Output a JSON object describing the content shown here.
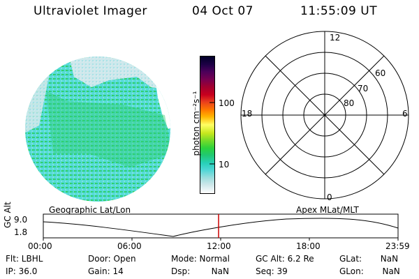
{
  "header": {
    "title": "Ultraviolet Imager",
    "date": "04 Oct 07",
    "time": "11:55:09 UT"
  },
  "colorbar": {
    "label": "photon cm⁻²s⁻¹",
    "ticks": [
      "100",
      "10"
    ],
    "colors": [
      "#ffffff",
      "#cfe7ea",
      "#9fdede",
      "#4fd6d6",
      "#28d0b8",
      "#21c870",
      "#2cd23c",
      "#7cdc28",
      "#c8e81e",
      "#ffff64",
      "#ffb400",
      "#ff7800",
      "#e83c1e",
      "#c8001e",
      "#a00030",
      "#780050",
      "#4a005a",
      "#1e0046",
      "#000028"
    ]
  },
  "polar_plot": {
    "mlt_labels": [
      "12",
      "18",
      "6",
      "0"
    ],
    "lat_labels": [
      "60",
      "70",
      "80"
    ]
  },
  "timeline": {
    "left_title": "Geographic Lat/Lon",
    "right_title": "Apex MLat/MLT",
    "axis_label": "GC Alt",
    "y_ticks": [
      "9.0",
      "1.8"
    ],
    "x_ticks": [
      "00:00",
      "06:00",
      "12:00",
      "18:00",
      "23:59"
    ],
    "cursor_color": "#cc0000"
  },
  "status": {
    "flt": "Flt: LBHL",
    "ip": "IP: 36.0",
    "door": "Door: Open",
    "gain": "Gain: 14",
    "mode": "Mode: Normal",
    "dsp": "Dsp:        NaN",
    "gcalt": "GC Alt: 6.2 Re",
    "seq": "Seq: 39",
    "glat": "GLat:       NaN",
    "glon": "GLon:       NaN"
  }
}
